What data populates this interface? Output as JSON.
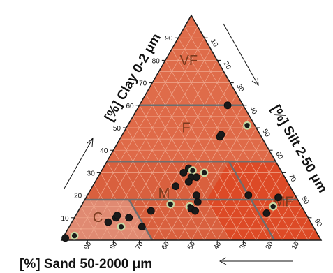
{
  "chart_data": {
    "type": "scatter",
    "subtype": "ternary",
    "axes": {
      "clay": {
        "label": "[%] Clay 0-2 μm",
        "ticks": [
          10,
          20,
          30,
          40,
          50,
          60,
          70,
          80,
          90
        ]
      },
      "silt": {
        "label": "[%] Silt 2-50 μm",
        "ticks": [
          10,
          20,
          30,
          40,
          50,
          60,
          70,
          80,
          90
        ]
      },
      "sand": {
        "label": "[%] Sand 50-2000 μm",
        "ticks": [
          90,
          80,
          70,
          60,
          50,
          40,
          30,
          20,
          10
        ]
      }
    },
    "regions": [
      {
        "label": "VF",
        "position": "clay 70-100%",
        "color": "#df6c4a"
      },
      {
        "label": "F",
        "position": "clay 35-60%",
        "color": "#df6a48"
      },
      {
        "label": "M",
        "position": "clay 18-35%, sand < 65%",
        "color": "#d9603e"
      },
      {
        "label": "MF",
        "position": "clay 18-35%, silt > 65%",
        "color": "#dd4a26"
      },
      {
        "label": "C",
        "position": "clay < 18%, sand > 65%",
        "color": "#e08a72"
      }
    ],
    "grid": true,
    "points": [
      {
        "clay": 1,
        "silt": 1
      },
      {
        "clay": 2,
        "silt": 4
      },
      {
        "clay": 8,
        "silt": 14
      },
      {
        "clay": 10,
        "silt": 16
      },
      {
        "clay": 11,
        "silt": 16
      },
      {
        "clay": 6,
        "silt": 20
      },
      {
        "clay": 10,
        "silt": 21
      },
      {
        "clay": 6,
        "silt": 28
      },
      {
        "clay": 13,
        "silt": 28
      },
      {
        "clay": 16,
        "silt": 34
      },
      {
        "clay": 24,
        "silt": 32
      },
      {
        "clay": 30,
        "silt": 32
      },
      {
        "clay": 32,
        "silt": 33
      },
      {
        "clay": 31,
        "silt": 35
      },
      {
        "clay": 28,
        "silt": 36
      },
      {
        "clay": 28,
        "silt": 38
      },
      {
        "clay": 26,
        "silt": 36
      },
      {
        "clay": 30,
        "silt": 40
      },
      {
        "clay": 46,
        "silt": 38
      },
      {
        "clay": 47,
        "silt": 38
      },
      {
        "clay": 20,
        "silt": 42
      },
      {
        "clay": 15,
        "silt": 42
      },
      {
        "clay": 14,
        "silt": 43
      },
      {
        "clay": 13,
        "silt": 45
      },
      {
        "clay": 17,
        "silt": 44
      },
      {
        "clay": 51,
        "silt": 46
      },
      {
        "clay": 60,
        "silt": 34
      },
      {
        "clay": 20,
        "silt": 62
      },
      {
        "clay": 12,
        "silt": 73
      },
      {
        "clay": 15,
        "silt": 74
      },
      {
        "clay": 19,
        "silt": 74
      }
    ],
    "point_style": {
      "fill": "#1a1a1a",
      "stroke": "#111111",
      "highlight_stroke": "#c8d9a3"
    }
  }
}
